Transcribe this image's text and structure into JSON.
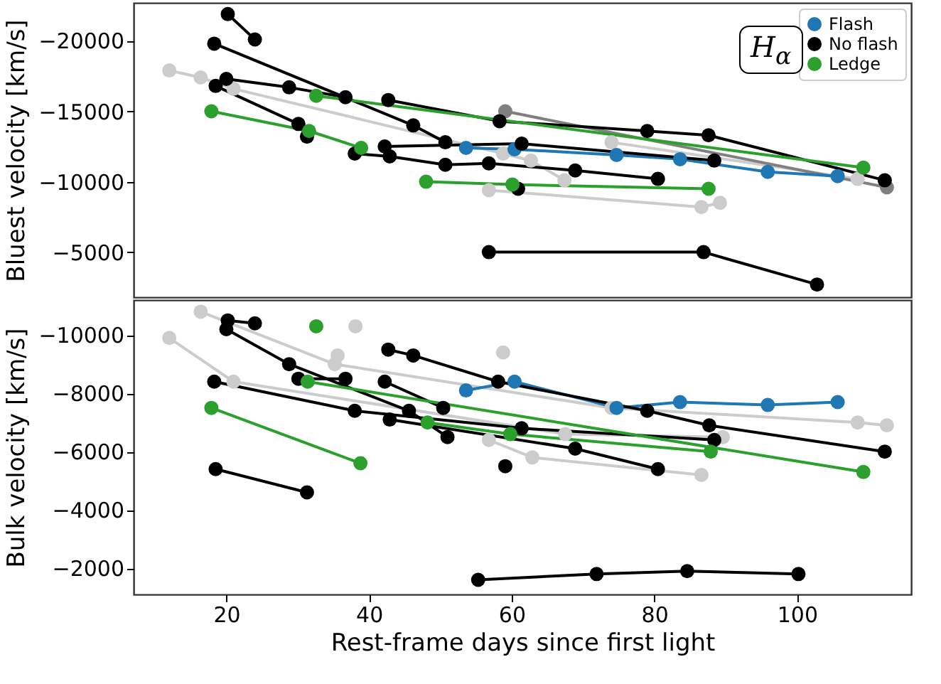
{
  "chart_data": [
    {
      "type": "line",
      "ylabel": "Bluest velocity [km/s]",
      "xlim": [
        7,
        116
      ],
      "ylim": [
        -1800,
        -22700
      ],
      "yticks": [
        -20000,
        -15000,
        -10000,
        -5000
      ],
      "tick_labels": "y",
      "marker": "circle",
      "legend": "top right",
      "grid": false,
      "annotations": [
        "H$_{α}$"
      ],
      "series": [
        {
          "color": "#cccccc",
          "x": [
            12.0,
            16.4,
            21.0,
            58.8,
            62.7,
            67.4
          ],
          "values": [
            -17900,
            -17400,
            -16600,
            -12000,
            -11500,
            -10100
          ]
        },
        {
          "color": "#cccccc",
          "x": [
            56.8,
            86.6,
            89.2
          ],
          "values": [
            -9400,
            -8200,
            -8500
          ]
        },
        {
          "color": "#cccccc",
          "x": [
            74.0,
            108.5
          ],
          "values": [
            -12800,
            -10200
          ]
        },
        {
          "color": "#808080",
          "x": [
            59.1,
            112.6
          ],
          "values": [
            -15000,
            -9600
          ]
        },
        {
          "name": "Flash",
          "color": "#1f77b4",
          "x": [
            53.6,
            60.4,
            74.7,
            83.6,
            95.9,
            105.7
          ],
          "values": [
            -12400,
            -12300,
            -11900,
            -11600,
            -10700,
            -10400
          ]
        },
        {
          "name": "No flash",
          "color": "#000000",
          "x": [
            20.2,
            24.0
          ],
          "values": [
            -21900,
            -20100
          ]
        },
        {
          "color": "#000000",
          "x": [
            18.3,
            46.2,
            50.7
          ],
          "values": [
            -19800,
            -14000,
            -12800
          ]
        },
        {
          "color": "#000000",
          "x": [
            20.0,
            28.8,
            36.7
          ],
          "values": [
            -17300,
            -16700,
            -16000
          ]
        },
        {
          "color": "#000000",
          "x": [
            42.7,
            58.3,
            79.0,
            87.6,
            112.3
          ],
          "values": [
            -15800,
            -14300,
            -13600,
            -13300,
            -10100
          ]
        },
        {
          "color": "#000000",
          "x": [
            18.5,
            30.1,
            31.3
          ],
          "values": [
            -16800,
            -14100,
            -13200
          ]
        },
        {
          "color": "#000000",
          "x": [
            38.0,
            42.9,
            50.7,
            56.8,
            68.9,
            80.5
          ],
          "values": [
            -12000,
            -11800,
            -11200,
            -11300,
            -10800,
            -10200
          ]
        },
        {
          "color": "#000000",
          "x": [
            42.2,
            61.4,
            88.4
          ],
          "values": [
            -12500,
            -12700,
            -11500
          ]
        },
        {
          "color": "#000000",
          "x": [
            60.9
          ],
          "values": [
            -9500
          ]
        },
        {
          "color": "#000000",
          "x": [
            56.8,
            86.9,
            102.8
          ],
          "values": [
            -5000,
            -5000,
            -2700
          ]
        },
        {
          "name": "Ledge",
          "color": "#2ca02c",
          "x": [
            17.9,
            31.6,
            38.9
          ],
          "values": [
            -15000,
            -13600,
            -12400
          ]
        },
        {
          "color": "#2ca02c",
          "x": [
            32.6,
            109.3
          ],
          "values": [
            -16100,
            -11000
          ]
        },
        {
          "color": "#2ca02c",
          "x": [
            48.0,
            60.1,
            87.6
          ],
          "values": [
            -10000,
            -9800,
            -9500
          ]
        }
      ]
    },
    {
      "type": "line",
      "xlabel": "Rest-frame days since first light",
      "ylabel": "Bulk velocity [km/s]",
      "xlim": [
        7,
        116
      ],
      "xticks": [
        20,
        40,
        60,
        80,
        100
      ],
      "ylim": [
        -1100,
        -11200
      ],
      "yticks": [
        -10000,
        -8000,
        -6000,
        -4000,
        -2000
      ],
      "marker": "circle",
      "grid": false,
      "series": [
        {
          "color": "#cccccc",
          "x": [
            12.0,
            21.0,
            67.5,
            89.6
          ],
          "values": [
            -9900,
            -8400,
            -6600,
            -6500
          ]
        },
        {
          "color": "#cccccc",
          "x": [
            16.4,
            35.2,
            74.0,
            108.5,
            112.6
          ],
          "values": [
            -10800,
            -9000,
            -7500,
            -7000,
            -6900
          ]
        },
        {
          "color": "#cccccc",
          "x": [
            38.1
          ],
          "values": [
            -10300
          ]
        },
        {
          "color": "#cccccc",
          "x": [
            35.6
          ],
          "values": [
            -9300
          ]
        },
        {
          "color": "#cccccc",
          "x": [
            58.8
          ],
          "values": [
            -9400
          ]
        },
        {
          "color": "#cccccc",
          "x": [
            56.8,
            62.9,
            86.6
          ],
          "values": [
            -6400,
            -5800,
            -5200
          ]
        },
        {
          "color": "#1f77b4",
          "x": [
            53.6,
            60.4,
            74.7,
            83.6,
            95.9,
            105.7
          ],
          "values": [
            -8100,
            -8400,
            -7500,
            -7700,
            -7600,
            -7700
          ]
        },
        {
          "color": "#000000",
          "x": [
            20.2,
            24.0
          ],
          "values": [
            -10500,
            -10400
          ]
        },
        {
          "color": "#000000",
          "x": [
            20.0,
            28.8,
            45.6,
            51.0
          ],
          "values": [
            -10200,
            -9000,
            -7400,
            -6500
          ]
        },
        {
          "color": "#000000",
          "x": [
            42.7,
            46.2,
            58.1,
            79.0,
            87.7,
            112.3
          ],
          "values": [
            -9500,
            -9300,
            -8400,
            -7400,
            -6900,
            -6000
          ]
        },
        {
          "color": "#000000",
          "x": [
            18.3,
            38.0,
            61.4,
            88.4
          ],
          "values": [
            -8400,
            -7400,
            -6800,
            -6400
          ]
        },
        {
          "color": "#000000",
          "x": [
            42.9,
            68.9,
            80.5
          ],
          "values": [
            -7100,
            -6100,
            -5400
          ]
        },
        {
          "color": "#000000",
          "x": [
            30.1,
            36.7
          ],
          "values": [
            -8500,
            -8500
          ]
        },
        {
          "color": "#000000",
          "x": [
            42.2,
            50.4
          ],
          "values": [
            -8400,
            -7500
          ]
        },
        {
          "color": "#000000",
          "x": [
            59.1
          ],
          "values": [
            -5500
          ]
        },
        {
          "color": "#000000",
          "x": [
            18.5,
            31.3
          ],
          "values": [
            -5400,
            -4600
          ]
        },
        {
          "color": "#000000",
          "x": [
            55.3,
            71.9,
            84.6,
            100.2
          ],
          "values": [
            -1600,
            -1800,
            -1900,
            -1800
          ]
        },
        {
          "color": "#2ca02c",
          "x": [
            17.9,
            38.8
          ],
          "values": [
            -7500,
            -5600
          ]
        },
        {
          "color": "#2ca02c",
          "x": [
            31.4,
            109.3
          ],
          "values": [
            -8400,
            -5300
          ]
        },
        {
          "color": "#2ca02c",
          "x": [
            32.6
          ],
          "values": [
            -10300
          ]
        },
        {
          "color": "#2ca02c",
          "x": [
            48.2,
            59.8,
            87.9
          ],
          "values": [
            -7000,
            -6600,
            -6000
          ]
        }
      ]
    }
  ]
}
